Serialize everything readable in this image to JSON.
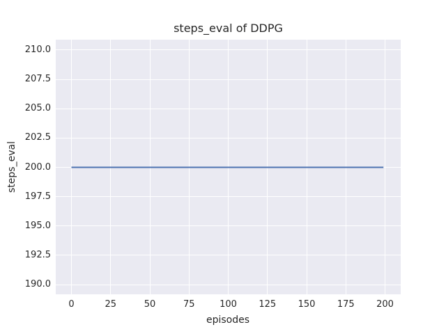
{
  "chart_data": {
    "type": "line",
    "title": "steps_eval of DDPG",
    "xlabel": "episodes",
    "ylabel": "steps_eval",
    "x_ticks": [
      0,
      25,
      50,
      75,
      100,
      125,
      150,
      175,
      200
    ],
    "x_tick_labels": [
      "0",
      "25",
      "50",
      "75",
      "100",
      "125",
      "150",
      "175",
      "200"
    ],
    "y_ticks": [
      190.0,
      192.5,
      195.0,
      197.5,
      200.0,
      202.5,
      205.0,
      207.5,
      210.0
    ],
    "y_tick_labels": [
      "190.0",
      "192.5",
      "195.0",
      "197.5",
      "200.0",
      "202.5",
      "205.0",
      "207.5",
      "210.0"
    ],
    "xlim": [
      -10,
      210
    ],
    "ylim": [
      189.17,
      210.89
    ],
    "grid": true,
    "legend_position": "none",
    "series": [
      {
        "name": "steps_eval",
        "color": "#4c72b0",
        "x": [
          0,
          199
        ],
        "y": [
          200.0,
          200.0
        ]
      }
    ],
    "colors": {
      "figure_background": "#ffffff",
      "plot_background": "#eaeaf2",
      "grid_color": "#ffffff",
      "text_color": "#262626"
    }
  }
}
